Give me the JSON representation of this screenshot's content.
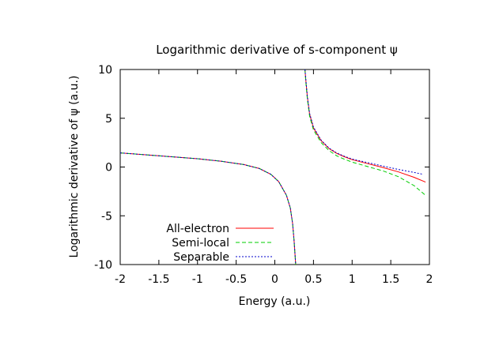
{
  "chart_data": {
    "type": "line",
    "title": "Logarithmic derivative of s-component ψ",
    "xlabel": "Energy (a.u.)",
    "ylabel": "Logarithmic derivative of ψ (a.u.)",
    "xlim": [
      -2,
      2
    ],
    "ylim": [
      -10,
      10
    ],
    "x_ticks": [
      -2,
      -1.5,
      -1,
      -0.5,
      0,
      0.5,
      1,
      1.5,
      2
    ],
    "x_tick_labels": [
      "-2",
      "-1.5",
      "-1",
      "-0.5",
      "0",
      "0.5",
      "1",
      "1.5",
      "2"
    ],
    "y_ticks": [
      -10,
      -5,
      0,
      5,
      10
    ],
    "y_tick_labels": [
      "-10",
      "-5",
      "0",
      "5",
      "10"
    ],
    "grid": false,
    "legend_position": "bottom-left",
    "series": [
      {
        "name": "All-electron",
        "color": "#ff0000",
        "dash": "solid",
        "segments": [
          [
            [
              -2.0,
              1.45
            ],
            [
              -1.5,
              1.15
            ],
            [
              -1.0,
              0.85
            ],
            [
              -0.7,
              0.6
            ],
            [
              -0.4,
              0.25
            ],
            [
              -0.2,
              -0.15
            ],
            [
              -0.05,
              -0.75
            ],
            [
              0.05,
              -1.5
            ],
            [
              0.15,
              -2.9
            ],
            [
              0.2,
              -4.2
            ],
            [
              0.23,
              -5.8
            ],
            [
              0.25,
              -7.6
            ],
            [
              0.26,
              -8.8
            ],
            [
              0.27,
              -10.0
            ]
          ],
          [
            [
              0.39,
              10.0
            ],
            [
              0.4,
              9.0
            ],
            [
              0.42,
              7.2
            ],
            [
              0.45,
              5.4
            ],
            [
              0.5,
              4.0
            ],
            [
              0.6,
              2.7
            ],
            [
              0.7,
              1.9
            ],
            [
              0.8,
              1.4
            ],
            [
              0.9,
              1.05
            ],
            [
              1.0,
              0.75
            ],
            [
              1.2,
              0.35
            ],
            [
              1.4,
              -0.05
            ],
            [
              1.6,
              -0.5
            ],
            [
              1.8,
              -1.05
            ],
            [
              1.95,
              -1.55
            ]
          ]
        ]
      },
      {
        "name": "Semi-local",
        "color": "#00cc00",
        "dash": "dashed",
        "segments": [
          [
            [
              -2.0,
              1.45
            ],
            [
              -1.5,
              1.15
            ],
            [
              -1.0,
              0.85
            ],
            [
              -0.7,
              0.6
            ],
            [
              -0.4,
              0.25
            ],
            [
              -0.2,
              -0.15
            ],
            [
              -0.05,
              -0.75
            ],
            [
              0.05,
              -1.5
            ],
            [
              0.15,
              -2.9
            ],
            [
              0.2,
              -4.2
            ],
            [
              0.23,
              -5.8
            ],
            [
              0.25,
              -7.6
            ],
            [
              0.26,
              -8.8
            ],
            [
              0.27,
              -10.0
            ]
          ],
          [
            [
              0.39,
              10.0
            ],
            [
              0.4,
              8.8
            ],
            [
              0.42,
              7.0
            ],
            [
              0.45,
              5.2
            ],
            [
              0.5,
              3.8
            ],
            [
              0.6,
              2.5
            ],
            [
              0.7,
              1.7
            ],
            [
              0.8,
              1.15
            ],
            [
              0.9,
              0.8
            ],
            [
              1.0,
              0.5
            ],
            [
              1.2,
              0.05
            ],
            [
              1.4,
              -0.4
            ],
            [
              1.6,
              -1.0
            ],
            [
              1.8,
              -1.9
            ],
            [
              1.95,
              -2.9
            ]
          ]
        ]
      },
      {
        "name": "Separable",
        "color": "#0000cc",
        "dash": "dotted",
        "segments": [
          [
            [
              -2.0,
              1.45
            ],
            [
              -1.5,
              1.15
            ],
            [
              -1.0,
              0.85
            ],
            [
              -0.7,
              0.6
            ],
            [
              -0.4,
              0.25
            ],
            [
              -0.2,
              -0.15
            ],
            [
              -0.05,
              -0.75
            ],
            [
              0.05,
              -1.5
            ],
            [
              0.15,
              -2.9
            ],
            [
              0.2,
              -4.2
            ],
            [
              0.23,
              -5.8
            ],
            [
              0.25,
              -7.6
            ],
            [
              0.26,
              -8.8
            ],
            [
              0.27,
              -10.0
            ]
          ],
          [
            [
              0.39,
              10.0
            ],
            [
              0.4,
              9.1
            ],
            [
              0.42,
              7.3
            ],
            [
              0.45,
              5.5
            ],
            [
              0.5,
              4.1
            ],
            [
              0.6,
              2.75
            ],
            [
              0.7,
              1.95
            ],
            [
              0.8,
              1.45
            ],
            [
              0.9,
              1.1
            ],
            [
              1.0,
              0.82
            ],
            [
              1.2,
              0.45
            ],
            [
              1.4,
              0.1
            ],
            [
              1.6,
              -0.25
            ],
            [
              1.8,
              -0.55
            ],
            [
              1.92,
              -0.75
            ]
          ]
        ]
      }
    ]
  }
}
